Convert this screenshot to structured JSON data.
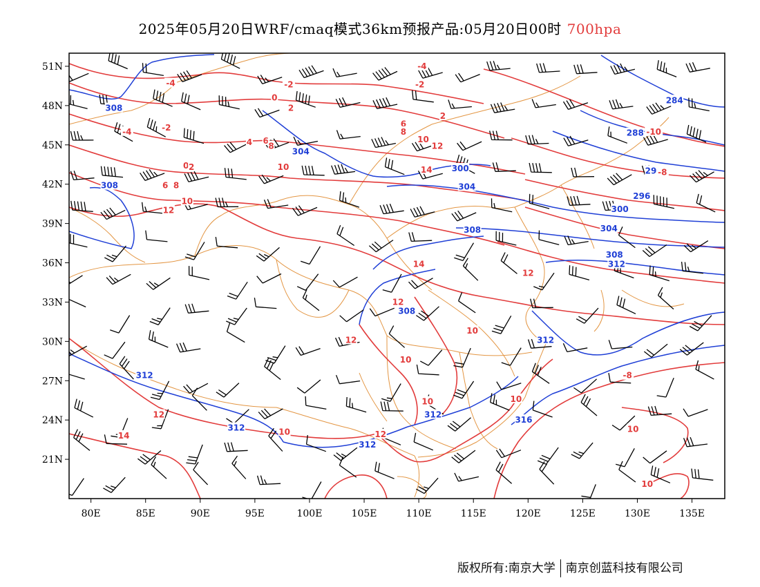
{
  "title": {
    "main": "2025年05月20日WRF/cmaq模式36km预报产品:05月20日00时",
    "level": "700hpa"
  },
  "footer": {
    "left": "版权所有:南京大学",
    "right": "南京创蓝科技有限公司"
  },
  "map": {
    "lon_range": [
      78,
      138
    ],
    "lat_range": [
      18,
      52
    ],
    "lon_ticks": [
      "80E",
      "85E",
      "90E",
      "95E",
      "100E",
      "105E",
      "110E",
      "115E",
      "120E",
      "125E",
      "130E",
      "135E"
    ],
    "lon_values": [
      80,
      85,
      90,
      95,
      100,
      105,
      110,
      115,
      120,
      125,
      130,
      135
    ],
    "lat_ticks": [
      "51N",
      "48N",
      "45N",
      "42N",
      "39N",
      "36N",
      "33N",
      "30N",
      "27N",
      "24N",
      "21N"
    ],
    "lat_values": [
      51,
      48,
      45,
      42,
      39,
      36,
      33,
      30,
      27,
      24,
      21
    ],
    "colors": {
      "temperature_contour": "#e23b3b",
      "geopotential_contour": "#1f3fd6",
      "boundary": "#e08a2e",
      "wind_barb": "#000000",
      "title_level": "#e23b3b"
    },
    "height_labels": [
      {
        "text": "308",
        "lon": 82.1,
        "lat": 47.8
      },
      {
        "text": "304",
        "lon": 99.2,
        "lat": 44.5
      },
      {
        "text": "308",
        "lon": 81.7,
        "lat": 41.9
      },
      {
        "text": "300",
        "lon": 113.8,
        "lat": 43.2
      },
      {
        "text": "304",
        "lon": 114.4,
        "lat": 41.8
      },
      {
        "text": "308",
        "lon": 114.9,
        "lat": 38.5
      },
      {
        "text": "308",
        "lon": 108.9,
        "lat": 32.3
      },
      {
        "text": "284",
        "lon": 133.4,
        "lat": 48.4
      },
      {
        "text": "288",
        "lon": 129.8,
        "lat": 45.9
      },
      {
        "text": "292",
        "lon": 131.5,
        "lat": 43.0
      },
      {
        "text": "296",
        "lon": 130.4,
        "lat": 41.1
      },
      {
        "text": "300",
        "lon": 128.4,
        "lat": 40.1
      },
      {
        "text": "304",
        "lon": 127.4,
        "lat": 38.6
      },
      {
        "text": "308",
        "lon": 127.9,
        "lat": 36.6
      },
      {
        "text": "312",
        "lon": 128.1,
        "lat": 35.9
      },
      {
        "text": "312",
        "lon": 121.6,
        "lat": 30.1
      },
      {
        "text": "312",
        "lon": 84.9,
        "lat": 27.4
      },
      {
        "text": "312",
        "lon": 93.3,
        "lat": 23.4
      },
      {
        "text": "312",
        "lon": 105.3,
        "lat": 22.1
      },
      {
        "text": "312",
        "lon": 111.3,
        "lat": 24.4
      },
      {
        "text": "316",
        "lon": 119.6,
        "lat": 24.0
      }
    ],
    "temp_labels": [
      {
        "text": "-4",
        "lon": 87.3,
        "lat": 49.7
      },
      {
        "text": "-4",
        "lon": 110.3,
        "lat": 51.0
      },
      {
        "text": "-2",
        "lon": 98.1,
        "lat": 49.6
      },
      {
        "text": "-2",
        "lon": 110.1,
        "lat": 49.6
      },
      {
        "text": "0",
        "lon": 96.8,
        "lat": 48.6
      },
      {
        "text": "2",
        "lon": 98.3,
        "lat": 47.8
      },
      {
        "text": "2",
        "lon": 112.2,
        "lat": 47.2
      },
      {
        "text": "-4",
        "lon": 83.3,
        "lat": 46.0
      },
      {
        "text": "-2",
        "lon": 86.9,
        "lat": 46.3
      },
      {
        "text": "4",
        "lon": 94.5,
        "lat": 45.2
      },
      {
        "text": "6",
        "lon": 96.0,
        "lat": 45.3
      },
      {
        "text": "8",
        "lon": 96.5,
        "lat": 44.9
      },
      {
        "text": "6",
        "lon": 108.6,
        "lat": 46.6
      },
      {
        "text": "8",
        "lon": 108.6,
        "lat": 46.0
      },
      {
        "text": "10",
        "lon": 110.4,
        "lat": 45.4
      },
      {
        "text": "12",
        "lon": 111.7,
        "lat": 44.9
      },
      {
        "text": "14",
        "lon": 110.7,
        "lat": 43.1
      },
      {
        "text": "0",
        "lon": 88.7,
        "lat": 43.4
      },
      {
        "text": "2",
        "lon": 89.2,
        "lat": 43.3
      },
      {
        "text": "10",
        "lon": 97.6,
        "lat": 43.3
      },
      {
        "text": "6",
        "lon": 86.8,
        "lat": 41.9
      },
      {
        "text": "8",
        "lon": 87.8,
        "lat": 41.9
      },
      {
        "text": "10",
        "lon": 88.8,
        "lat": 40.7
      },
      {
        "text": "12",
        "lon": 87.1,
        "lat": 40.0
      },
      {
        "text": "-10",
        "lon": 131.5,
        "lat": 46.0
      },
      {
        "text": "-8",
        "lon": 132.3,
        "lat": 42.9
      },
      {
        "text": "14",
        "lon": 110.0,
        "lat": 35.9
      },
      {
        "text": "12",
        "lon": 120.0,
        "lat": 35.2
      },
      {
        "text": "12",
        "lon": 108.1,
        "lat": 33.0
      },
      {
        "text": "10",
        "lon": 114.9,
        "lat": 30.8
      },
      {
        "text": "12",
        "lon": 103.8,
        "lat": 30.1
      },
      {
        "text": "10",
        "lon": 108.8,
        "lat": 28.6
      },
      {
        "text": "-8",
        "lon": 129.1,
        "lat": 27.4
      },
      {
        "text": "10",
        "lon": 110.8,
        "lat": 25.4
      },
      {
        "text": "10",
        "lon": 118.9,
        "lat": 25.6
      },
      {
        "text": "12",
        "lon": 86.2,
        "lat": 24.4
      },
      {
        "text": "14",
        "lon": 83.0,
        "lat": 22.8
      },
      {
        "text": "10",
        "lon": 97.7,
        "lat": 23.1
      },
      {
        "text": "12",
        "lon": 106.5,
        "lat": 22.9
      },
      {
        "text": "10",
        "lon": 129.6,
        "lat": 23.3
      },
      {
        "text": "10",
        "lon": 130.9,
        "lat": 19.1
      }
    ]
  }
}
